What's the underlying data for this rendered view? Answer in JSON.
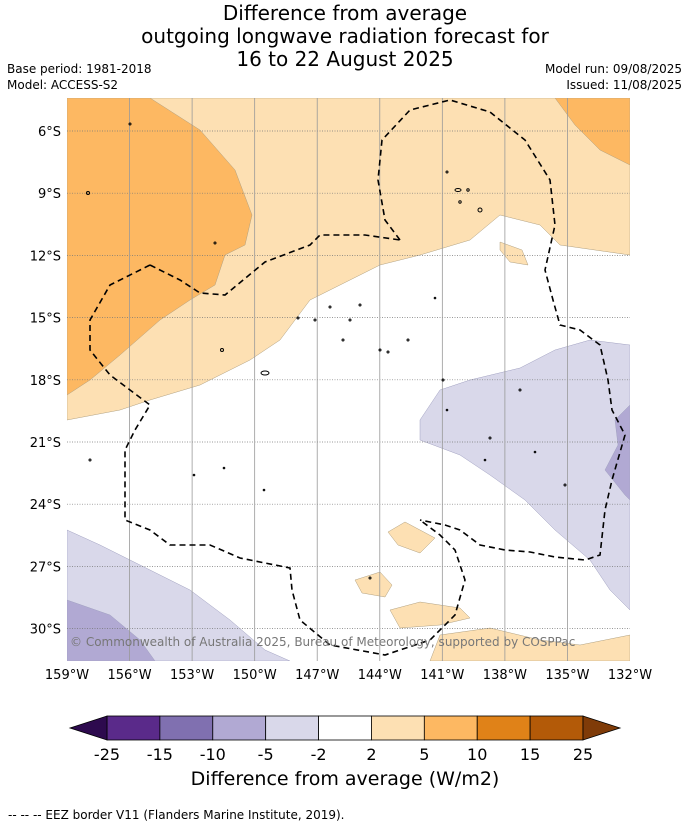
{
  "title": {
    "line1": "Difference from average",
    "line2": "outgoing longwave radiation forecast for",
    "line3": "16 to 22 August 2025"
  },
  "meta": {
    "base_period": "Base period: 1981-2018",
    "model": "Model: ACCESS-S2",
    "model_run": "Model run: 09/08/2025",
    "issued": "Issued: 11/08/2025"
  },
  "map": {
    "lat_labels": [
      "6°S",
      "9°S",
      "12°S",
      "15°S",
      "18°S",
      "21°S",
      "24°S",
      "27°S",
      "30°S"
    ],
    "lon_labels": [
      "159°W",
      "156°W",
      "153°W",
      "150°W",
      "147°W",
      "144°W",
      "141°W",
      "138°W",
      "135°W",
      "132°W"
    ],
    "copyright": "© Commonwealth of Australia 2025, Bureau of Meteorology, supported by COSPPac",
    "eez_border_style": "dashed"
  },
  "colorbar": {
    "ticks": [
      "-25",
      "-15",
      "-10",
      "-5",
      "-2",
      "2",
      "5",
      "10",
      "15",
      "25"
    ],
    "colors": [
      "#5a2a8a",
      "#8070b0",
      "#b1a9d3",
      "#d9d8ea",
      "#ffffff",
      "#fde0b3",
      "#fdb862",
      "#e08218",
      "#b35a08"
    ],
    "under_color": "#2d0a4e",
    "over_color": "#7f3b08",
    "label": "Difference from average (W/m2)"
  },
  "footer": "-- -- -- EEZ border V11 (Flanders Marine Institute, 2019)."
}
